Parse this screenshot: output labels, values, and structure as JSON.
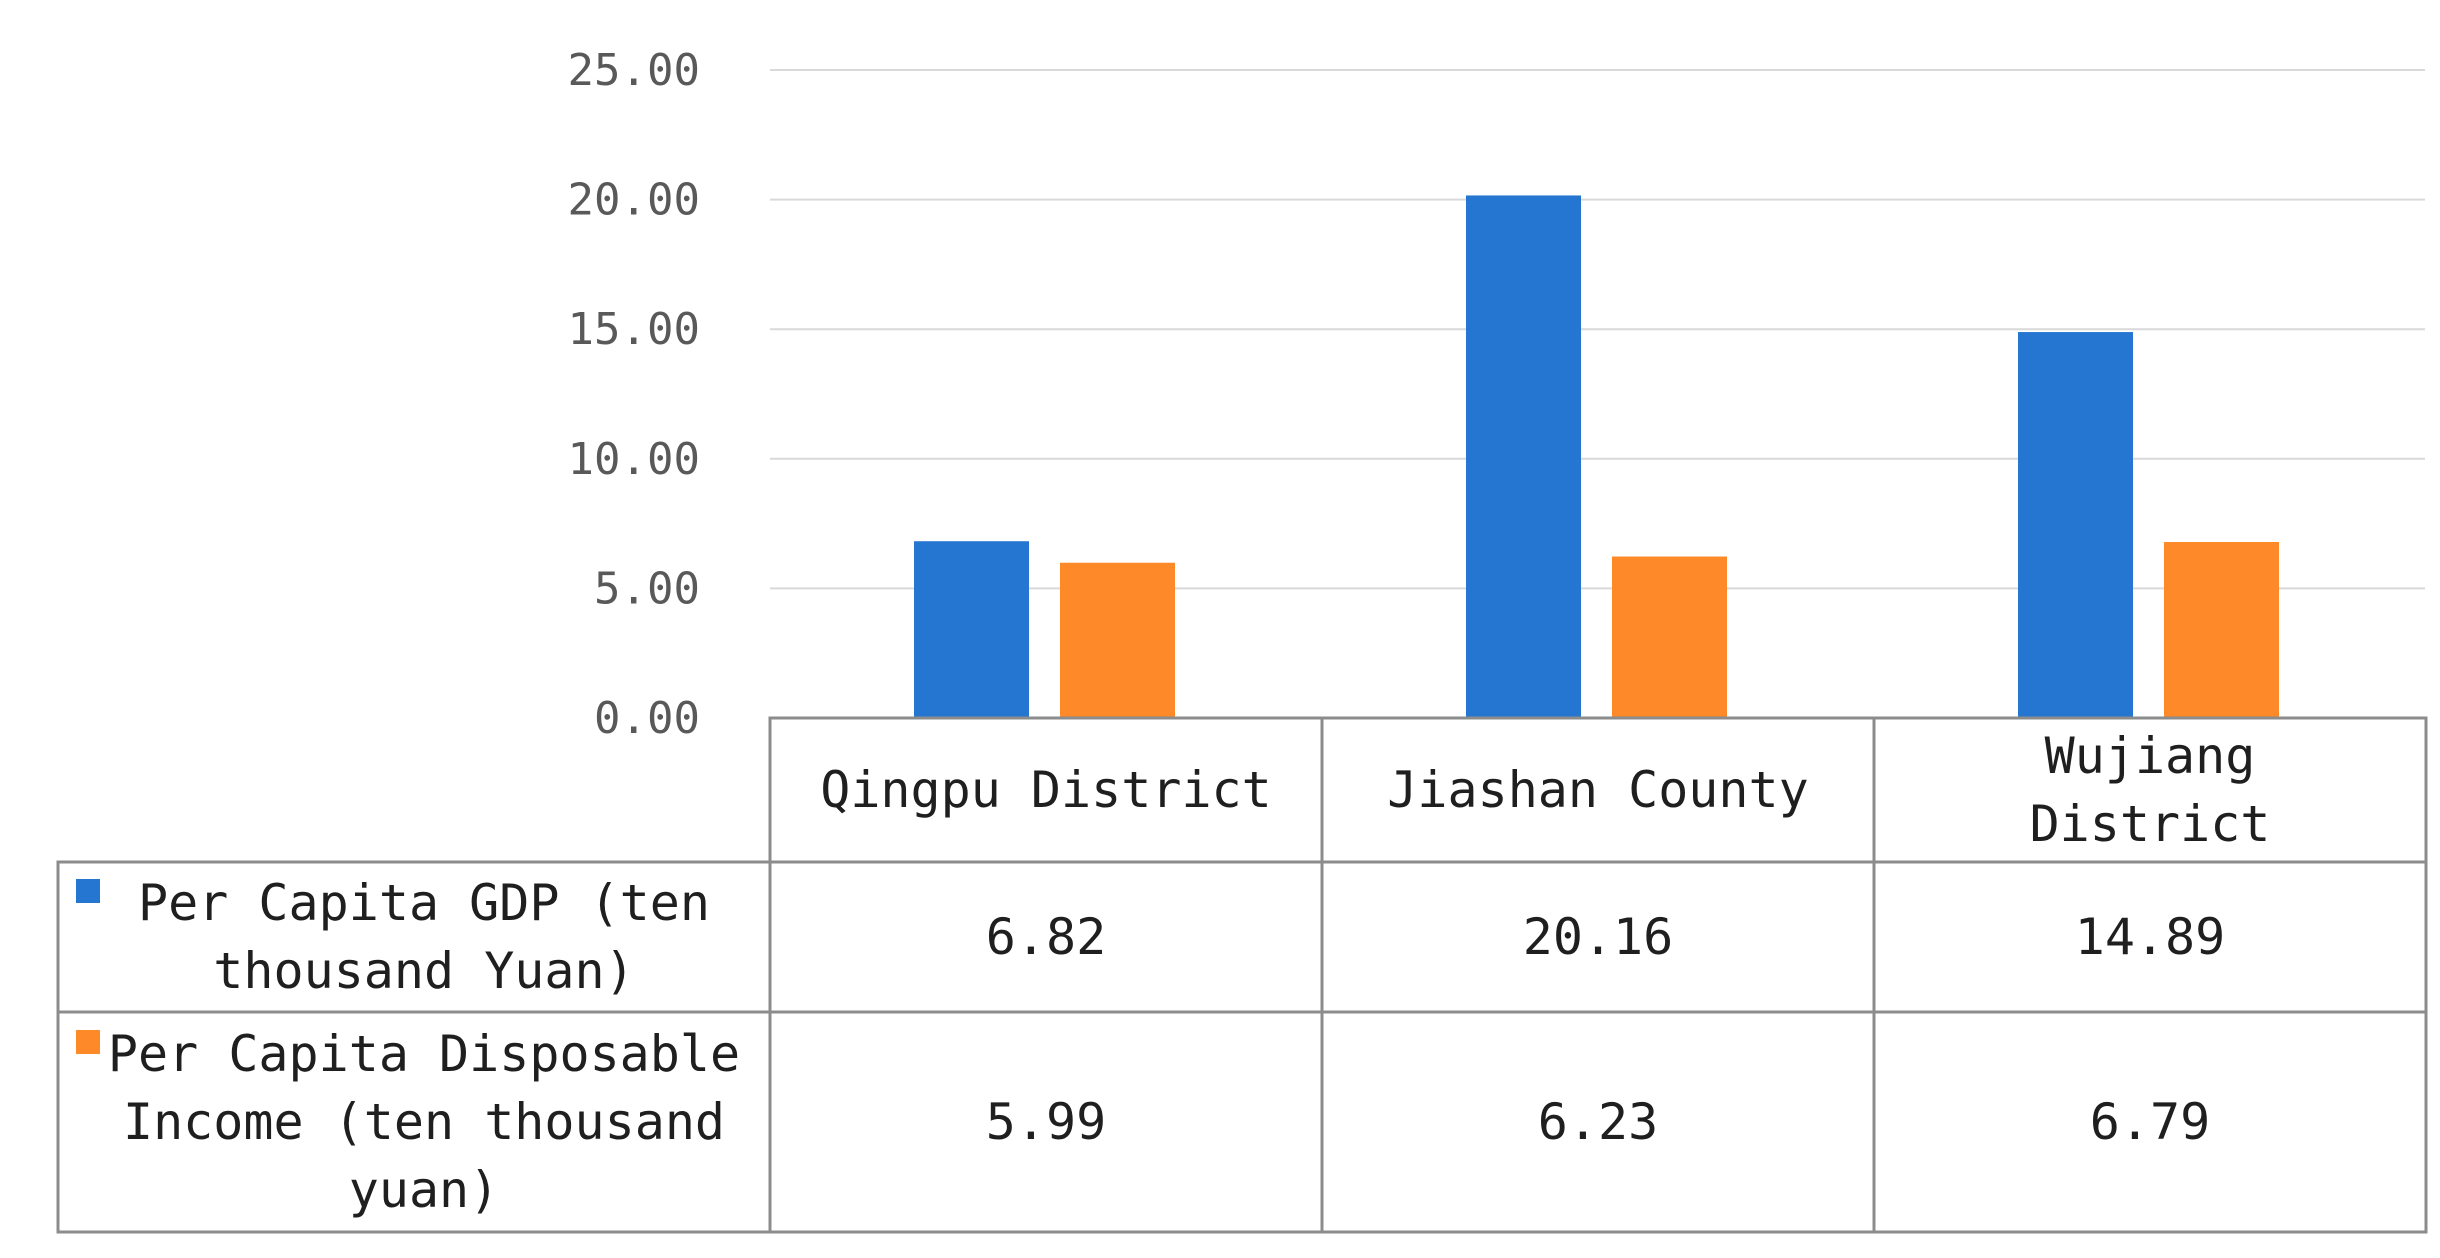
{
  "chart_data": {
    "type": "bar",
    "title": "",
    "xlabel": "",
    "ylabel": "",
    "ylim": [
      0,
      25
    ],
    "yticks": [
      "0.00",
      "5.00",
      "10.00",
      "15.00",
      "20.00",
      "25.00"
    ],
    "grid": true,
    "legend": "data-table",
    "categories": [
      {
        "lines": [
          "Qingpu District"
        ]
      },
      {
        "lines": [
          "Jiashan County"
        ]
      },
      {
        "lines": [
          "Wujiang",
          "District"
        ]
      }
    ],
    "series": [
      {
        "name_lines": [
          "Per Capita GDP (ten",
          "thousand Yuan)"
        ],
        "color": "#2476d1",
        "values": [
          6.82,
          20.16,
          14.89
        ],
        "labels": [
          "6.82",
          "20.16",
          "14.89"
        ]
      },
      {
        "name_lines": [
          "Per Capita Disposable",
          "Income (ten thousand",
          "yuan)"
        ],
        "color": "#fd8928",
        "values": [
          5.99,
          6.23,
          6.79
        ],
        "labels": [
          "5.99",
          "6.23",
          "6.79"
        ]
      }
    ]
  }
}
